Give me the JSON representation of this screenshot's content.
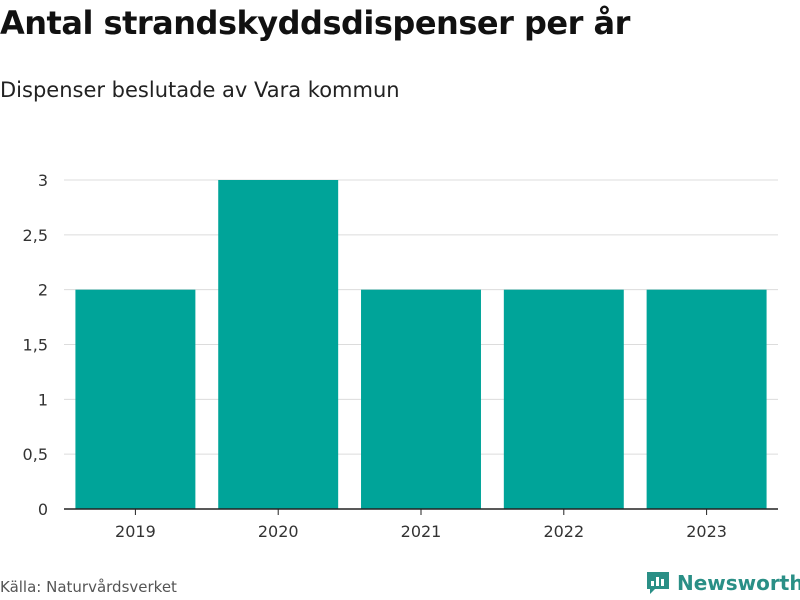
{
  "header": {
    "title": "Antal strandskyddsdispenser per år",
    "subtitle": "Dispenser beslutade av Vara kommun"
  },
  "footer": {
    "source": "Källa: Naturvårdsverket",
    "brand": "Newsworthy",
    "brand_icon": "bar-chart-logo-icon"
  },
  "colors": {
    "bar": "#00a499",
    "grid": "#dcdcdc",
    "axis": "#222222",
    "brand": "#2a8f86"
  },
  "chart_data": {
    "type": "bar",
    "title": "Antal strandskyddsdispenser per år",
    "subtitle": "Dispenser beslutade av Vara kommun",
    "xlabel": "",
    "ylabel": "",
    "categories": [
      "2019",
      "2020",
      "2021",
      "2022",
      "2023"
    ],
    "values": [
      2,
      3,
      2,
      2,
      2
    ],
    "ylim": [
      0,
      3
    ],
    "yticks": [
      0,
      0.5,
      1,
      1.5,
      2,
      2.5,
      3
    ],
    "ytick_labels": [
      "0",
      "0,5",
      "1",
      "1,5",
      "2",
      "2,5",
      "3"
    ],
    "grid": true,
    "legend": "none"
  }
}
